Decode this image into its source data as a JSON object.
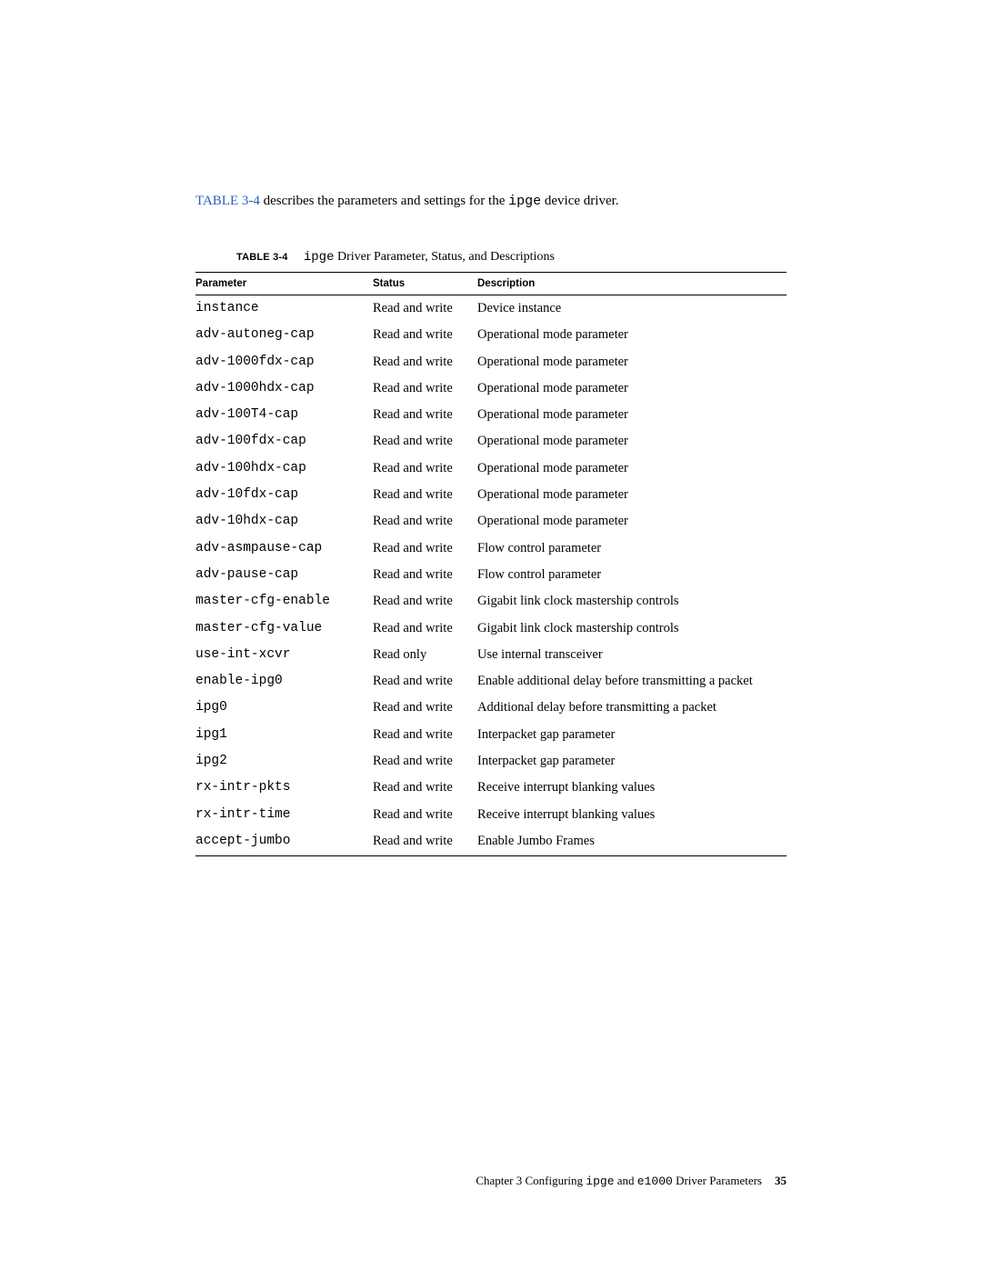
{
  "intro": {
    "ref": "TABLE 3-4",
    "text_before": " describes the parameters and settings for the ",
    "mono": "ipge",
    "text_after": " device driver."
  },
  "caption": {
    "label": "TABLE 3-4",
    "mono": "ipge",
    "rest": " Driver Parameter, Status, and Descriptions"
  },
  "table": {
    "headers": {
      "param": "Parameter",
      "status": "Status",
      "desc": "Description"
    },
    "rows": [
      {
        "param": "instance",
        "status": "Read and write",
        "desc": "Device instance"
      },
      {
        "param": "adv-autoneg-cap",
        "status": "Read and write",
        "desc": "Operational mode parameter"
      },
      {
        "param": "adv-1000fdx-cap",
        "status": "Read and write",
        "desc": "Operational mode parameter"
      },
      {
        "param": "adv-1000hdx-cap",
        "status": "Read and write",
        "desc": "Operational mode parameter"
      },
      {
        "param": "adv-100T4-cap",
        "status": "Read and write",
        "desc": "Operational mode parameter"
      },
      {
        "param": "adv-100fdx-cap",
        "status": "Read and write",
        "desc": "Operational mode parameter"
      },
      {
        "param": "adv-100hdx-cap",
        "status": "Read and write",
        "desc": "Operational mode parameter"
      },
      {
        "param": "adv-10fdx-cap",
        "status": "Read and write",
        "desc": "Operational mode parameter"
      },
      {
        "param": "adv-10hdx-cap",
        "status": "Read and write",
        "desc": "Operational mode parameter"
      },
      {
        "param": "adv-asmpause-cap",
        "status": "Read and write",
        "desc": "Flow control parameter"
      },
      {
        "param": "adv-pause-cap",
        "status": "Read and write",
        "desc": "Flow control parameter"
      },
      {
        "param": "master-cfg-enable",
        "status": "Read and write",
        "desc": "Gigabit link clock mastership controls"
      },
      {
        "param": "master-cfg-value",
        "status": "Read and write",
        "desc": "Gigabit link clock mastership controls"
      },
      {
        "param": "use-int-xcvr",
        "status": "Read only",
        "desc": "Use internal transceiver"
      },
      {
        "param": "enable-ipg0",
        "status": "Read and write",
        "desc": "Enable additional delay before transmitting a packet"
      },
      {
        "param": "ipg0",
        "status": "Read and write",
        "desc": "Additional delay before transmitting a packet"
      },
      {
        "param": "ipg1",
        "status": "Read and write",
        "desc": "Interpacket gap parameter"
      },
      {
        "param": "ipg2",
        "status": "Read and write",
        "desc": "Interpacket gap parameter"
      },
      {
        "param": "rx-intr-pkts",
        "status": "Read and write",
        "desc": "Receive interrupt blanking values"
      },
      {
        "param": "rx-intr-time",
        "status": "Read and write",
        "desc": "Receive interrupt blanking values"
      },
      {
        "param": "accept-jumbo",
        "status": "Read and write",
        "desc": "Enable Jumbo Frames"
      }
    ]
  },
  "footer": {
    "chapter": "Chapter 3   Configuring ",
    "mono1": "ipge",
    "mid": " and ",
    "mono2": "e1000",
    "tail": " Driver Parameters",
    "page": "35"
  }
}
